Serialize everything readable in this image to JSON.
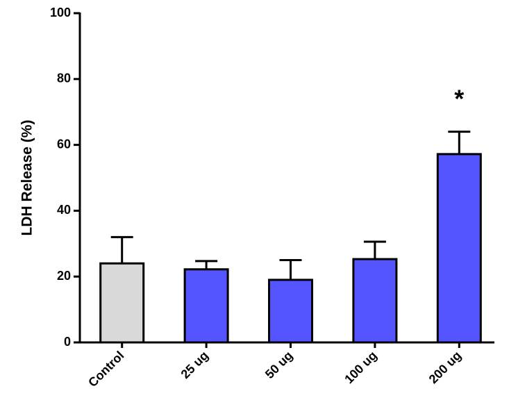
{
  "chart_data": {
    "type": "bar",
    "ylabel": "LDH  Release (%)",
    "categories": [
      "Control",
      "25 ug",
      "50 ug",
      "100 ug",
      "200 ug"
    ],
    "values": [
      24,
      22.2,
      19,
      25.3,
      57.2
    ],
    "errors": [
      8,
      2.5,
      6,
      5.3,
      6.8
    ],
    "colors": [
      "#d9d9d9",
      "#5555ff",
      "#5555ff",
      "#5555ff",
      "#5555ff"
    ],
    "ylim": [
      0,
      100
    ],
    "yticks": [
      0,
      20,
      40,
      60,
      80,
      100
    ],
    "annotations": [
      {
        "text": "*",
        "category": "200 ug"
      }
    ]
  }
}
